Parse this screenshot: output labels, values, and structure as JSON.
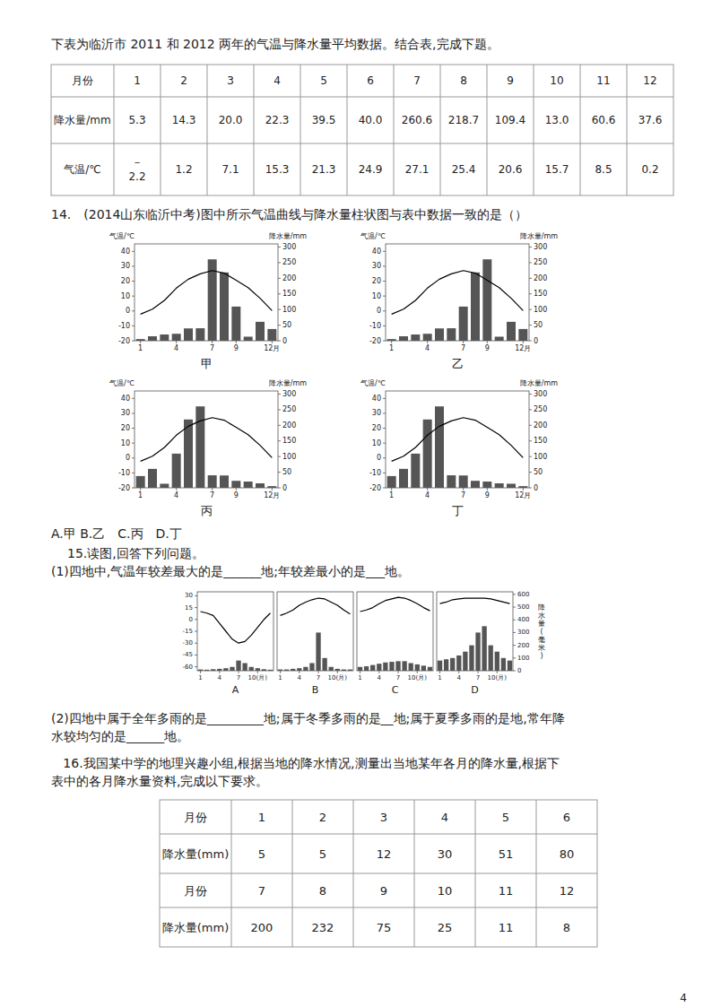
{
  "texts": {
    "intro_text": "下表为临沂市 2011 和 2012 两年的气温与降水量平均数据。结合表,完成下题。",
    "q14_text": "14. (2014山东临沂中考)图中所示气温曲线与降水量柱状图与表中数据一致的是（）",
    "q14_answer": "A.甲 B.乙 C.丙 D.丁",
    "q15_header": "15.读图,回答下列问题。",
    "q15_q1": "(1)四地中,气温年较差最大的是______地;年较差最小的是___地。",
    "q15_q2_line1": "(2)四地中属于全年多雨的是_________地;属于冬季多雨的是__地;属于夏季多雨的是地,常年降",
    "q15_q2_line2": "水较均匀的是______地。",
    "q16_line1": "   16.我国某中学的地理兴趣小组,根据当地的降水情况,测量出当地某年各月的降水量,根据下",
    "q16_line2": "表中的各月降水量资料,完成以下要求。",
    "page_num": "4"
  },
  "table1": {
    "headers": [
      "月份",
      "1",
      "2",
      "3",
      "4",
      "5",
      "6",
      "7",
      "8",
      "9",
      "10",
      "11",
      "12"
    ],
    "row1_label": "降水量/mm",
    "row1_values": [
      "5.3",
      "14.3",
      "20.0",
      "22.3",
      "39.5",
      "40.0",
      "260.6",
      "218.7",
      "109.4",
      "13.0",
      "60.6",
      "37.6"
    ],
    "row2_label": "气温/℃",
    "row2_val1_top": "－",
    "row2_val1_bot": "2.2",
    "row2_values": [
      "1.2",
      "7.1",
      "15.3",
      "21.3",
      "24.9",
      "27.1",
      "25.4",
      "20.6",
      "15.7",
      "8.5",
      "0.2"
    ]
  },
  "table2": {
    "rows": [
      [
        "月份",
        "1",
        "2",
        "3",
        "4",
        "5",
        "6"
      ],
      [
        "降水量(mm)",
        "5",
        "5",
        "12",
        "30",
        "51",
        "80"
      ],
      [
        "月份",
        "7",
        "8",
        "9",
        "10",
        "11",
        "12"
      ],
      [
        "降水量(mm)",
        "200",
        "232",
        "75",
        "25",
        "11",
        "8"
      ]
    ]
  },
  "chart_data": [
    {
      "type": "bar",
      "title": "甲",
      "categories": [
        "1",
        null,
        null,
        "4",
        null,
        null,
        "7",
        null,
        "9",
        null,
        null,
        "12月"
      ],
      "ylabel": "气温/℃",
      "y2label": "降水量/mm",
      "ylim": [
        -20,
        45
      ],
      "yticks": [
        -20,
        -10,
        0,
        10,
        20,
        30,
        40
      ],
      "y2lim": [
        0,
        310
      ],
      "y2ticks": [
        0,
        50,
        100,
        150,
        200,
        250,
        300
      ],
      "series": [
        {
          "type": "bar",
          "axis": "y2",
          "color": "#555555",
          "values": [
            5.3,
            14.3,
            20.0,
            22.3,
            39.5,
            40.0,
            260.6,
            218.7,
            109.4,
            13.0,
            60.6,
            37.6
          ]
        },
        {
          "type": "line",
          "color": "#000000",
          "values": [
            -2.2,
            1.2,
            7.1,
            15.3,
            21.3,
            24.9,
            27.1,
            25.4,
            20.6,
            15.7,
            8.5,
            0.2
          ]
        }
      ]
    },
    {
      "type": "bar",
      "title": "乙",
      "categories": [
        "1",
        null,
        null,
        "4",
        null,
        null,
        "7",
        null,
        "9",
        null,
        null,
        "12月"
      ],
      "ylabel": "气温/℃",
      "y2label": "降水量/mm",
      "ylim": [
        -20,
        45
      ],
      "yticks": [
        -20,
        -10,
        0,
        10,
        20,
        30,
        40
      ],
      "y2lim": [
        0,
        310
      ],
      "y2ticks": [
        0,
        50,
        100,
        150,
        200,
        250,
        300
      ],
      "series": [
        {
          "type": "bar",
          "axis": "y2",
          "color": "#555555",
          "values": [
            5.3,
            14.3,
            20.0,
            22.3,
            39.5,
            40.0,
            109.4,
            218.7,
            260.6,
            13.0,
            60.6,
            37.6
          ]
        },
        {
          "type": "line",
          "color": "#000000",
          "values": [
            -2.2,
            1.2,
            7.1,
            15.3,
            21.3,
            24.9,
            27.1,
            25.4,
            20.6,
            15.7,
            8.5,
            0.2
          ]
        }
      ]
    },
    {
      "type": "bar",
      "title": "丙",
      "categories": [
        "1",
        null,
        null,
        "4",
        null,
        null,
        "7",
        null,
        "9",
        null,
        null,
        "12月"
      ],
      "ylabel": "气温/℃",
      "y2label": "降水量/mm",
      "ylim": [
        -20,
        45
      ],
      "yticks": [
        -20,
        -10,
        0,
        10,
        20,
        30,
        40
      ],
      "y2lim": [
        0,
        310
      ],
      "y2ticks": [
        0,
        50,
        100,
        150,
        200,
        250,
        300
      ],
      "series": [
        {
          "type": "bar",
          "axis": "y2",
          "color": "#555555",
          "values": [
            37.6,
            60.6,
            13.0,
            109.4,
            218.7,
            260.6,
            40.0,
            39.5,
            22.3,
            20.0,
            14.3,
            5.3
          ]
        },
        {
          "type": "line",
          "color": "#000000",
          "values": [
            -2.2,
            1.2,
            7.1,
            15.3,
            21.3,
            24.9,
            27.1,
            25.4,
            20.6,
            15.7,
            8.5,
            0.2
          ]
        }
      ]
    },
    {
      "type": "bar",
      "title": "丁",
      "categories": [
        "1",
        null,
        null,
        "4",
        null,
        null,
        "7",
        null,
        "9",
        null,
        null,
        "12月"
      ],
      "ylabel": "气温/℃",
      "y2label": "降水量/mm",
      "ylim": [
        -20,
        45
      ],
      "yticks": [
        -20,
        -10,
        0,
        10,
        20,
        30,
        40
      ],
      "y2lim": [
        0,
        310
      ],
      "y2ticks": [
        0,
        50,
        100,
        150,
        200,
        250,
        300
      ],
      "series": [
        {
          "type": "bar",
          "axis": "y2",
          "color": "#555555",
          "values": [
            37.6,
            60.6,
            109.4,
            218.7,
            260.6,
            40.0,
            39.5,
            22.3,
            20.0,
            14.3,
            13.0,
            5.3
          ]
        },
        {
          "type": "line",
          "color": "#000000",
          "values": [
            -2.2,
            1.2,
            7.1,
            15.3,
            21.3,
            24.9,
            27.1,
            25.4,
            20.6,
            15.7,
            8.5,
            0.2
          ]
        }
      ]
    },
    {
      "type": "bar",
      "title": "A",
      "categories": [
        "1",
        null,
        null,
        "4",
        null,
        null,
        "7",
        null,
        null,
        "10(月)",
        null,
        null
      ],
      "ylim": [
        -65,
        35
      ],
      "yticks": [
        -60,
        -45,
        -30,
        -15,
        0,
        15,
        30
      ],
      "y2lim": [
        0,
        620
      ],
      "series": [
        {
          "type": "bar",
          "axis": "y2",
          "color": "#555555",
          "values": [
            10,
            8,
            12,
            15,
            20,
            30,
            80,
            60,
            30,
            20,
            12,
            8
          ]
        },
        {
          "type": "line",
          "color": "#000000",
          "values": [
            10,
            8,
            5,
            -5,
            -15,
            -25,
            -30,
            -28,
            -20,
            -10,
            0,
            8
          ]
        }
      ]
    },
    {
      "type": "bar",
      "title": "B",
      "categories": [
        "1",
        null,
        null,
        "4",
        null,
        null,
        "7",
        null,
        null,
        "10(月)",
        null,
        null
      ],
      "ylim": [
        -65,
        35
      ],
      "y2lim": [
        0,
        620
      ],
      "series": [
        {
          "type": "bar",
          "axis": "y2",
          "color": "#555555",
          "values": [
            10,
            10,
            15,
            20,
            30,
            60,
            300,
            100,
            30,
            15,
            10,
            10
          ]
        },
        {
          "type": "line",
          "color": "#000000",
          "values": [
            5,
            8,
            12,
            18,
            22,
            25,
            27,
            26,
            22,
            18,
            12,
            7
          ]
        }
      ]
    },
    {
      "type": "bar",
      "title": "C",
      "categories": [
        "1",
        null,
        null,
        "4",
        null,
        null,
        "7",
        null,
        null,
        "10(月)",
        null,
        null
      ],
      "ylim": [
        -65,
        35
      ],
      "y2lim": [
        0,
        620
      ],
      "series": [
        {
          "type": "bar",
          "axis": "y2",
          "color": "#555555",
          "values": [
            30,
            35,
            45,
            55,
            65,
            70,
            75,
            75,
            60,
            50,
            40,
            30
          ]
        },
        {
          "type": "line",
          "color": "#000000",
          "values": [
            10,
            12,
            15,
            20,
            24,
            26,
            28,
            27,
            24,
            20,
            15,
            11
          ]
        }
      ]
    },
    {
      "type": "bar",
      "title": "D",
      "categories": [
        "1",
        null,
        null,
        "4",
        null,
        null,
        "7",
        null,
        null,
        "10(月)",
        null,
        null
      ],
      "y2label": "降水量(毫米)",
      "ylim": [
        -65,
        35
      ],
      "y2lim": [
        0,
        620
      ],
      "y2ticks": [
        0,
        100,
        200,
        300,
        400,
        500,
        600
      ],
      "series": [
        {
          "type": "bar",
          "axis": "y2",
          "color": "#555555",
          "values": [
            80,
            90,
            100,
            120,
            150,
            200,
            300,
            350,
            200,
            150,
            100,
            80
          ]
        },
        {
          "type": "line",
          "color": "#000000",
          "values": [
            20,
            22,
            25,
            26,
            27,
            27,
            27,
            27,
            26,
            24,
            22,
            20
          ]
        }
      ]
    }
  ]
}
